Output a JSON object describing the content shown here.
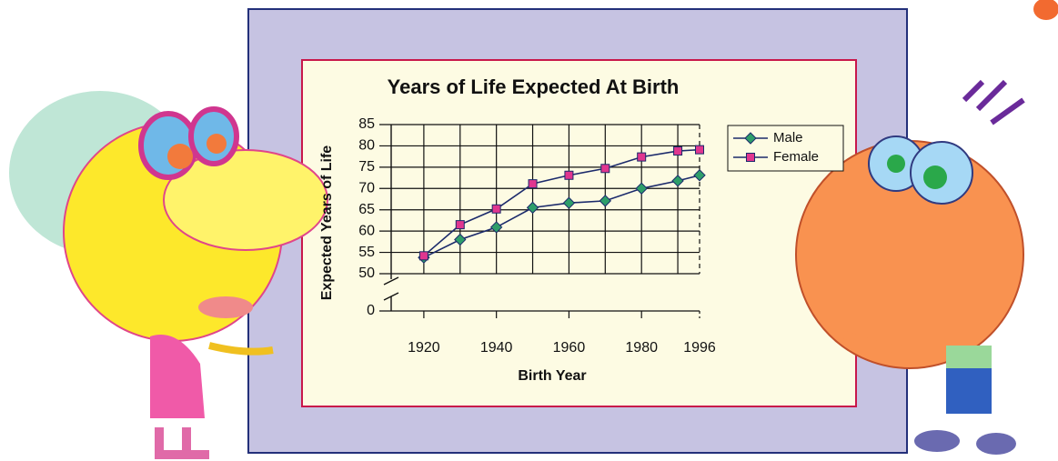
{
  "chart_data": {
    "type": "line",
    "title": "Years of Life Expected At Birth",
    "x_label": "Birth Year",
    "y_label": "Expected Years of Life",
    "x": [
      1920,
      1930,
      1940,
      1950,
      1960,
      1970,
      1980,
      1990,
      1996
    ],
    "series": [
      {
        "name": "Male",
        "color": "#2e9e6a",
        "marker": "diamond",
        "values": [
          53.8,
          58,
          60.9,
          65.5,
          66.6,
          67.1,
          70,
          71.8,
          73.1
        ]
      },
      {
        "name": "Female",
        "color": "#e0368f",
        "marker": "square",
        "values": [
          54.2,
          61.5,
          65.2,
          71.1,
          73.1,
          74.7,
          77.4,
          78.8,
          79.1
        ]
      }
    ],
    "line_color": "#1b2a6b",
    "xlim": [
      1911,
      1996
    ],
    "xticks": [
      1920,
      1940,
      1960,
      1980,
      1996
    ],
    "x_minor_ticks": [
      1930,
      1950,
      1970,
      1990
    ],
    "ylim": [
      0,
      85
    ],
    "y_axis_break": [
      0,
      50
    ],
    "yticks": [
      0,
      50,
      55,
      60,
      65,
      70,
      75,
      80,
      85
    ],
    "grid": true,
    "legend": "top-right"
  }
}
